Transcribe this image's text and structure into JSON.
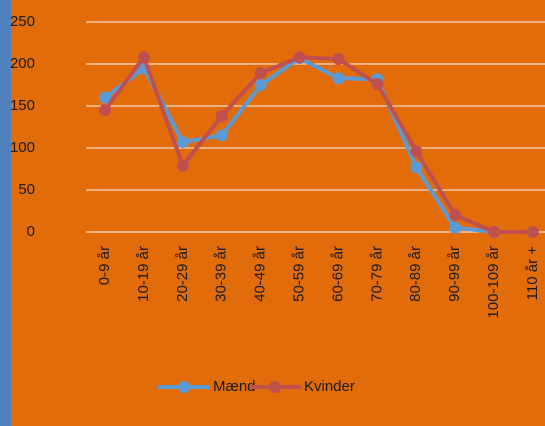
{
  "chart_data": {
    "type": "line",
    "categories": [
      "0-9 år",
      "10-19 år",
      "20-29 år",
      "30-39 år",
      "40-49 år",
      "50-59 år",
      "60-69 år",
      "70-79 år",
      "80-89 år",
      "90-99 år",
      "100-109 år",
      "110 år +"
    ],
    "series": [
      {
        "name": "Mænd",
        "color": "#5b9bd5",
        "values": [
          160,
          195,
          107,
          115,
          175,
          207,
          183,
          182,
          77,
          5,
          0,
          0
        ]
      },
      {
        "name": "Kvinder",
        "color": "#c0504d",
        "values": [
          145,
          208,
          79,
          138,
          189,
          208,
          206,
          176,
          96,
          20,
          0,
          0
        ]
      }
    ],
    "ylim": [
      0,
      250
    ],
    "yticks": [
      0,
      50,
      100,
      150,
      200,
      250
    ],
    "grid": true,
    "legend": "bottom"
  }
}
